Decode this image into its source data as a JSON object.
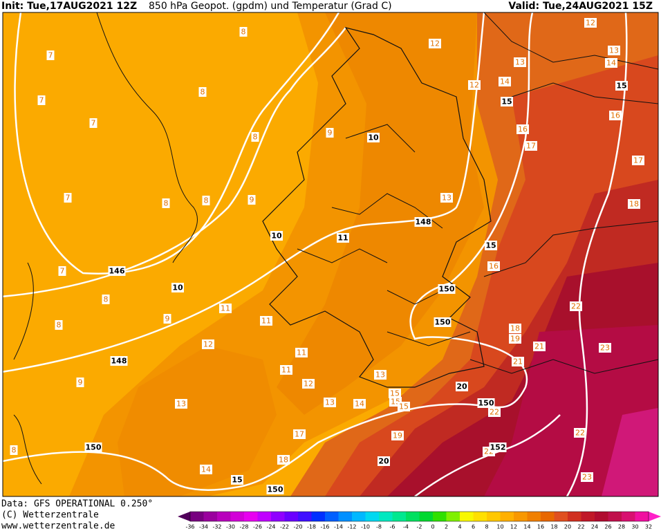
{
  "header": {
    "init": "Init: Tue,17AUG2021 12Z",
    "title": "850 hPa Geopot. (gpdm) und Temperatur (Grad C)",
    "valid": "Valid: Tue,24AUG2021 15Z"
  },
  "map_labels": {
    "temperature": [
      8,
      7,
      7,
      8,
      7,
      9,
      8,
      12,
      12,
      12,
      13,
      14,
      13,
      14,
      16,
      17,
      16,
      17,
      18,
      7,
      8,
      8,
      9,
      13,
      16,
      7,
      8,
      8,
      9,
      11,
      11,
      12,
      11,
      11,
      12,
      13,
      18,
      19,
      21,
      21,
      22,
      23,
      9,
      13,
      13,
      14,
      15,
      15,
      15,
      22,
      17,
      19,
      22,
      18,
      14,
      23,
      8,
      22
    ],
    "contours": [
      10,
      15,
      15,
      10,
      11,
      148,
      15,
      146,
      10,
      150,
      150,
      148,
      20,
      150,
      152,
      150,
      20,
      15,
      150
    ]
  },
  "footer": {
    "data": "Data: GFS OPERATIONAL 0.250°",
    "copyright": "(C) Wetterzentrale",
    "url": "www.wetterzentrale.de"
  },
  "colorbar": {
    "labels": [
      -36,
      -34,
      -32,
      -30,
      -28,
      -26,
      -24,
      -22,
      -20,
      -18,
      -16,
      -14,
      -12,
      -10,
      -8,
      -6,
      -4,
      -2,
      0,
      2,
      4,
      6,
      8,
      10,
      12,
      14,
      16,
      18,
      20,
      22,
      24,
      26,
      28,
      30,
      32
    ],
    "colors": [
      "#50005a",
      "#780080",
      "#9a009e",
      "#b800bc",
      "#d200d8",
      "#e800f0",
      "#c000ff",
      "#9000ff",
      "#6a00ff",
      "#4010ff",
      "#0030ff",
      "#0060ff",
      "#0090ff",
      "#00b8ff",
      "#00d8f0",
      "#00e8c0",
      "#00e890",
      "#00e060",
      "#00d830",
      "#30e000",
      "#80f000",
      "#f8f800",
      "#ffe000",
      "#ffc800",
      "#ffb000",
      "#f89800",
      "#f08000",
      "#e86800",
      "#e05020",
      "#d03020",
      "#c01828",
      "#b00c30",
      "#c0104c",
      "#d81070",
      "#f010a0",
      "#ff20c8"
    ]
  }
}
